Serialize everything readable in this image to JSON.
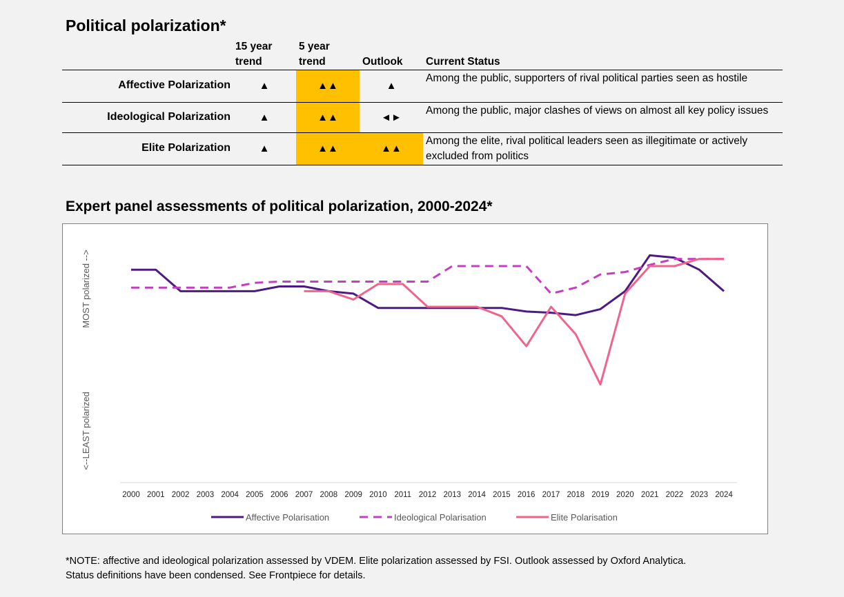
{
  "table": {
    "title": "Political polarization*",
    "headers": {
      "trend15_line1": "15 year",
      "trend15_line2": "trend",
      "trend5_line1": "5 year",
      "trend5_line2": "trend",
      "outlook": "Outlook",
      "status": "Current Status"
    },
    "rows": [
      {
        "label": "Affective Polarization",
        "trend15": "▲",
        "trend5": "▲▲",
        "outlook": "▲",
        "status": "Among the public, supporters of rival political parties seen as hostile"
      },
      {
        "label": "Ideological Polarization",
        "trend15": "▲",
        "trend5": "▲▲",
        "outlook": "◄►",
        "status": "Among the public, major clashes of views on almost all key policy issues"
      },
      {
        "label": "Elite Polarization",
        "trend15": "▲",
        "trend5": "▲▲",
        "outlook": "▲▲",
        "status": "Among the elite, rival political leaders seen as illegitimate or actively excluded from politics"
      }
    ],
    "highlight_color": "#ffc000"
  },
  "chart_title": "Expert panel assessments of political polarization, 2000-2024*",
  "chart_data": {
    "type": "line",
    "title": "Expert panel assessments of political polarization, 2000-2024*",
    "ylabel_top": "MOST polarized -->",
    "ylabel_bottom": "<--LEAST polarized",
    "x": [
      "2000",
      "2001",
      "2002",
      "2003",
      "2004",
      "2005",
      "2006",
      "2007",
      "2008",
      "2009",
      "2010",
      "2011",
      "2012",
      "2013",
      "2014",
      "2015",
      "2016",
      "2017",
      "2018",
      "2019",
      "2020",
      "2021",
      "2022",
      "2023",
      "2024"
    ],
    "ylim": [
      0,
      100
    ],
    "y_axis_ticks_visible": false,
    "grid": false,
    "legend_position": "bottom",
    "series": [
      {
        "name": "Affective Polarisation",
        "color": "#4b1a82",
        "dash": "solid",
        "values": [
          89,
          89,
          80,
          80,
          80,
          80,
          82,
          82,
          80,
          79,
          73,
          73,
          73,
          73,
          73,
          73,
          71.5,
          71,
          70,
          72.5,
          80,
          95,
          94,
          89,
          80
        ]
      },
      {
        "name": "Ideological Polarisation",
        "color": "#c63cc4",
        "dash": "dashed",
        "values": [
          81.5,
          81.5,
          81.5,
          81.5,
          81.5,
          83.5,
          84,
          84,
          84,
          84,
          84,
          84,
          84,
          90.5,
          90.5,
          90.5,
          90.5,
          79,
          81.5,
          87,
          88,
          91,
          93.5,
          93.5,
          93.5
        ]
      },
      {
        "name": "Elite Polarisation",
        "color": "#f0648c",
        "dash": "solid",
        "values": [
          null,
          null,
          null,
          null,
          null,
          null,
          null,
          80,
          80,
          76.5,
          83,
          83,
          73.5,
          73.5,
          73.5,
          69.5,
          57,
          73.5,
          62,
          41,
          79,
          90.5,
          90.5,
          93.5,
          93.5
        ]
      }
    ]
  },
  "note": {
    "line1": "*NOTE: affective and ideological polarization assessed by VDEM. Elite polarization assessed by FSI. Outlook assessed by Oxford Analytica.",
    "line2": "Status definitions have been condensed. See Frontpiece for details."
  }
}
